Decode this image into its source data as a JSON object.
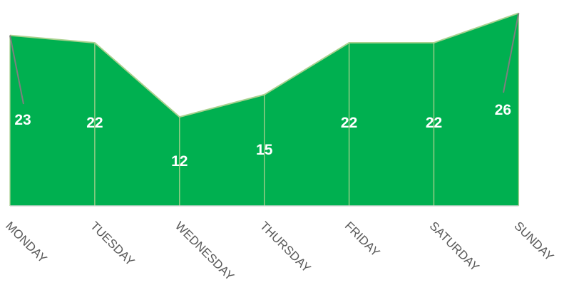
{
  "chart_data": {
    "type": "area",
    "categories": [
      "MONDAY",
      "TUESDAY",
      "WEDNESDAY",
      "THURSDAY",
      "FRIDAY",
      "SATURDAY",
      "SUNDAY"
    ],
    "series": [
      {
        "values": [
          23,
          22,
          12,
          15,
          22,
          22,
          26
        ]
      }
    ],
    "data_labels": [
      "23",
      "22",
      "12",
      "15",
      "22",
      "22",
      "26"
    ],
    "ylim": [
      0,
      27
    ],
    "grid": false,
    "legend": "none",
    "colors": {
      "fill": "#00B050",
      "edge": "#A9D18E",
      "leader_line": "#7F7F7F",
      "axis": "#D9D9D9",
      "tick_text": "#595959",
      "label_text": "#FFFFFF"
    }
  }
}
